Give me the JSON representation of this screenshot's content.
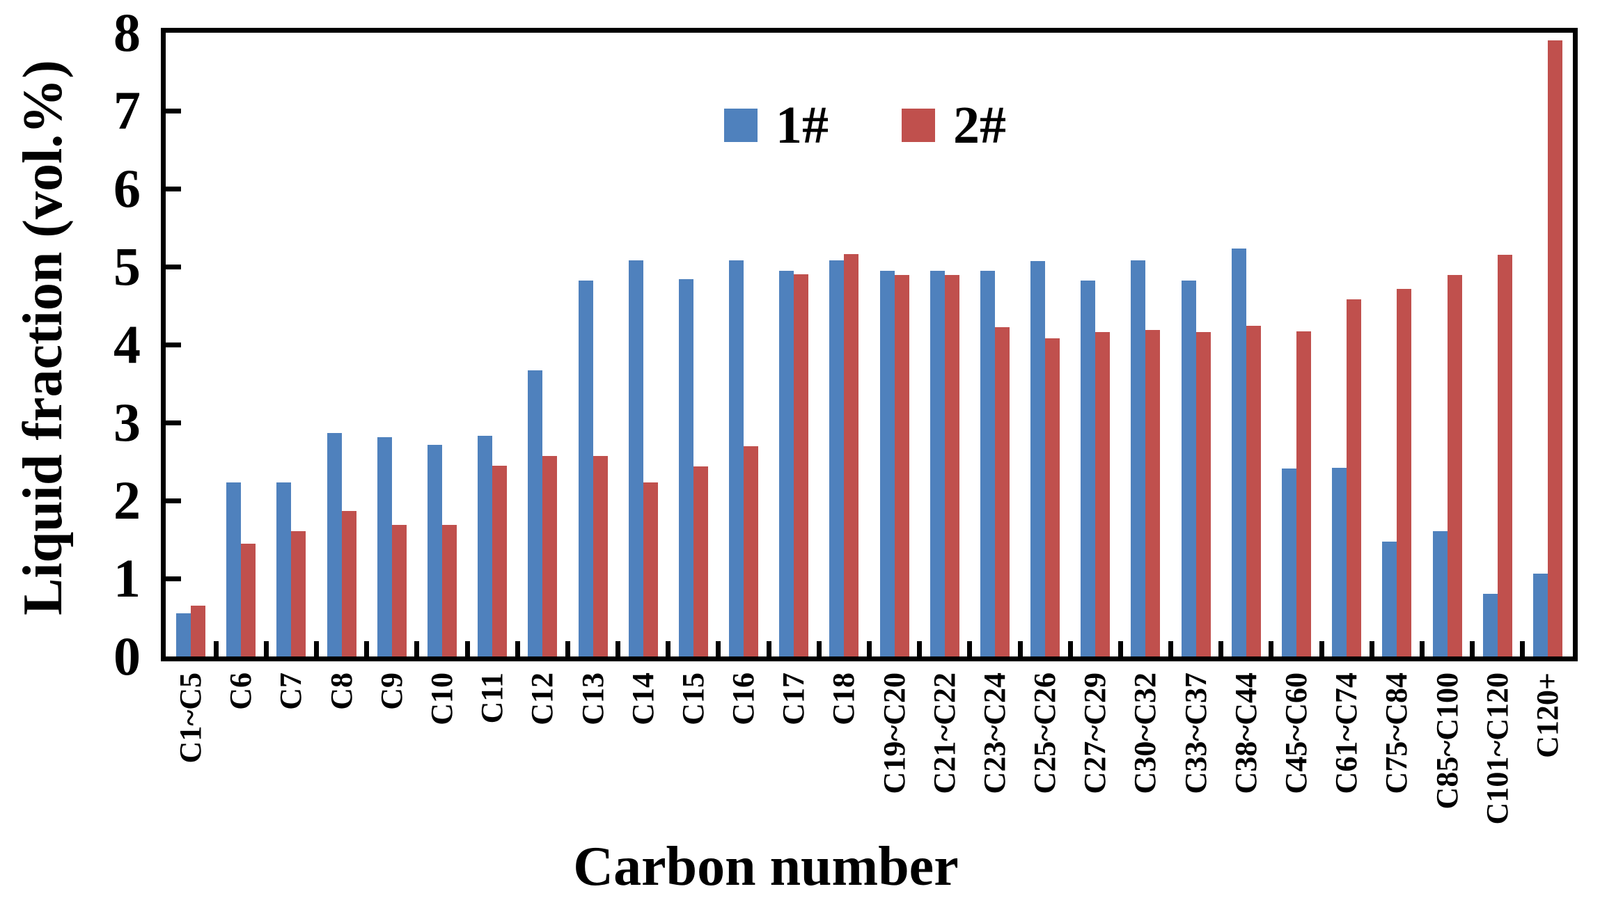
{
  "figure": {
    "background": "#ffffff",
    "axis_color": "#000000"
  },
  "chart_data": {
    "type": "bar",
    "title": "",
    "xlabel": "Carbon number",
    "ylabel": "Liquid fraction (vol.%)",
    "ylim": [
      0,
      8
    ],
    "ytick_labels": [
      "0",
      "1",
      "2",
      "3",
      "4",
      "5",
      "6",
      "7",
      "8"
    ],
    "grid": false,
    "legend_position": "top-center",
    "categories": [
      "C1~C5",
      "C6",
      "C7",
      "C8",
      "C9",
      "C10",
      "C11",
      "C12",
      "C13",
      "C14",
      "C15",
      "C16",
      "C17",
      "C18",
      "C19~C20",
      "C21~C22",
      "C23~C24",
      "C25~C26",
      "C27~C29",
      "C30~C32",
      "C33~C37",
      "C38~C44",
      "C45~C60",
      "C61~C74",
      "C75~C84",
      "C85~C100",
      "C101~C120",
      "C120+"
    ],
    "series": [
      {
        "name": "1#",
        "color": "#4F81BD",
        "values": [
          0.55,
          2.23,
          2.23,
          2.87,
          2.81,
          2.71,
          2.83,
          3.67,
          4.82,
          5.08,
          4.84,
          5.08,
          4.95,
          5.08,
          4.95,
          4.95,
          4.95,
          5.07,
          4.82,
          5.08,
          4.82,
          5.23,
          2.41,
          2.42,
          1.47,
          1.61,
          0.8,
          1.06
        ]
      },
      {
        "name": "2#",
        "color": "#C0504D",
        "values": [
          0.65,
          1.45,
          1.61,
          1.87,
          1.69,
          1.69,
          2.45,
          2.57,
          2.57,
          2.23,
          2.44,
          2.7,
          4.9,
          5.16,
          4.89,
          4.89,
          4.22,
          4.08,
          4.16,
          4.19,
          4.16,
          4.24,
          4.17,
          4.58,
          4.71,
          4.89,
          5.15,
          7.9
        ]
      }
    ]
  }
}
